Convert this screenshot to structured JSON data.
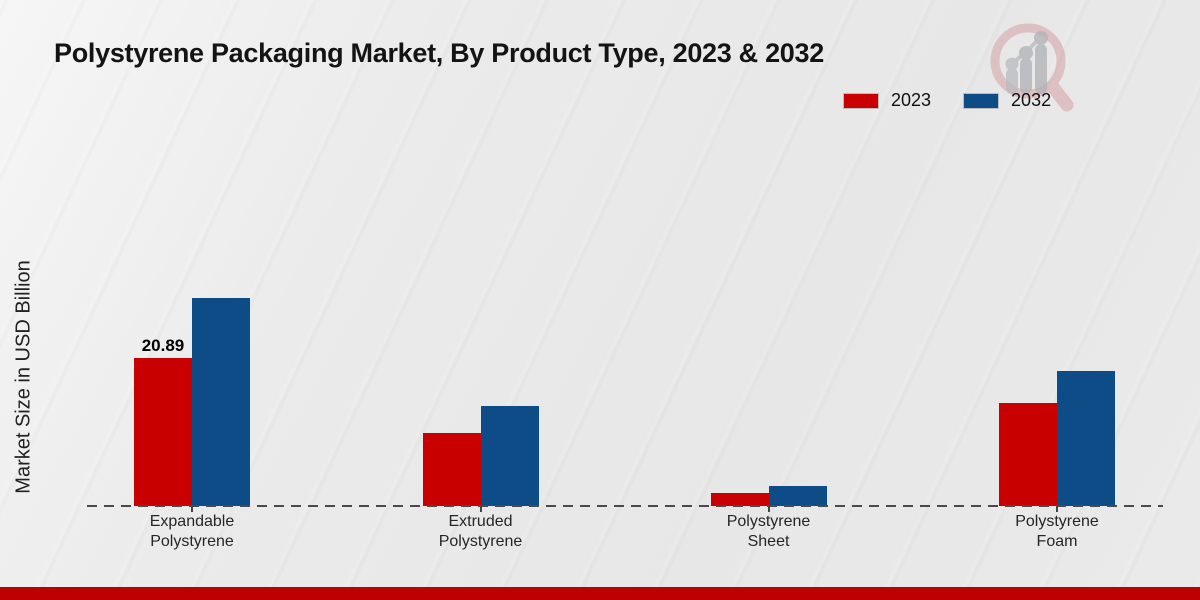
{
  "header": {
    "title": "Polystyrene Packaging Market, By Product Type, 2023 & 2032"
  },
  "legend": {
    "position": "top-right",
    "items": [
      {
        "label": "2023",
        "color": "#c80000"
      },
      {
        "label": "2032",
        "color": "#0e4c87"
      }
    ]
  },
  "chart_data": {
    "type": "bar",
    "title": "Polystyrene Packaging Market, By Product Type, 2023 & 2032",
    "xlabel": "",
    "ylabel": "Market Size in USD Billion",
    "categories": [
      "Expandable\nPolystyrene",
      "Extruded\nPolystyrene",
      "Polystyrene\nSheet",
      "Polystyrene\nFoam"
    ],
    "series": [
      {
        "name": "2023",
        "color": "#c80000",
        "values": [
          20.89,
          10.25,
          1.8,
          14.5
        ],
        "labels": [
          "20.89",
          "",
          "",
          ""
        ]
      },
      {
        "name": "2032",
        "color": "#0e4c87",
        "values": [
          29.3,
          14.1,
          2.8,
          19.0
        ],
        "labels": [
          "",
          "",
          "",
          ""
        ]
      }
    ],
    "ylim": [
      0,
      50
    ],
    "grid": false,
    "baseline_style": "dashed",
    "legend_position": "top-right",
    "annotations": [
      "Only the 2023 Expandable Polystyrene bar carries a printed value: 20.89"
    ]
  },
  "watermark": {
    "description": "magnifying-glass logo with rising bar chart",
    "ring_color": "#cf8a8e",
    "bars_color": "#a8a9ad"
  },
  "footer": {
    "accent_color": "#bd0000"
  }
}
